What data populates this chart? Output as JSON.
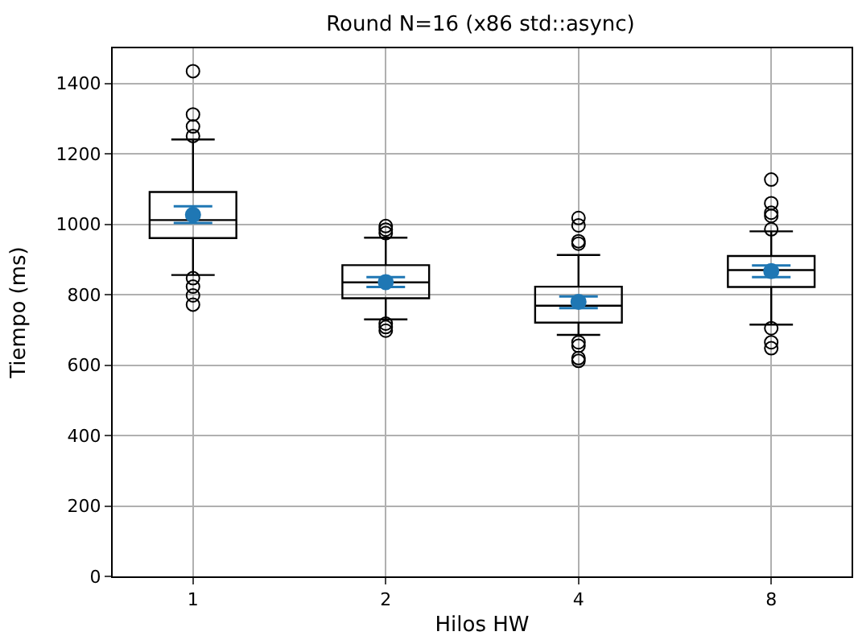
{
  "chart_data": {
    "type": "box",
    "title": "Round N=16 (x86 std::async)",
    "xlabel": "Hilos HW",
    "ylabel": "Tiempo (ms)",
    "categories": [
      "1",
      "2",
      "4",
      "8"
    ],
    "ylim": [
      0,
      1500
    ],
    "yticks": [
      0,
      200,
      400,
      600,
      800,
      1000,
      1200,
      1400
    ],
    "grid": true,
    "marker": "circle",
    "series": [
      {
        "color": "#000000",
        "boxes": [
          {
            "low": 856,
            "q1": 961,
            "median": 1012,
            "q3": 1092,
            "high": 1241,
            "outliers": [
              1435,
              1312,
              1278,
              1251,
              847,
              823,
              798,
              772
            ]
          },
          {
            "low": 730,
            "q1": 790,
            "median": 835,
            "q3": 884,
            "high": 962,
            "outliers": [
              995,
              985,
              975,
              718,
              708,
              698
            ]
          },
          {
            "low": 686,
            "q1": 721,
            "median": 769,
            "q3": 823,
            "high": 913,
            "outliers": [
              1018,
              997,
              952,
              945,
              665,
              655,
              620,
              612
            ]
          },
          {
            "low": 715,
            "q1": 822,
            "median": 870,
            "q3": 910,
            "high": 980,
            "outliers": [
              1127,
              1060,
              1033,
              1024,
              986,
              705,
              665,
              648
            ]
          }
        ]
      },
      {
        "type": "scatter",
        "color": "#1f77b4",
        "x": [
          "1",
          "2",
          "4",
          "8"
        ],
        "values": [
          1027,
          836,
          780,
          867
        ],
        "errors": [
          [
            1004,
            1051
          ],
          [
            822,
            850
          ],
          [
            762,
            795
          ],
          [
            850,
            883
          ]
        ]
      }
    ]
  }
}
